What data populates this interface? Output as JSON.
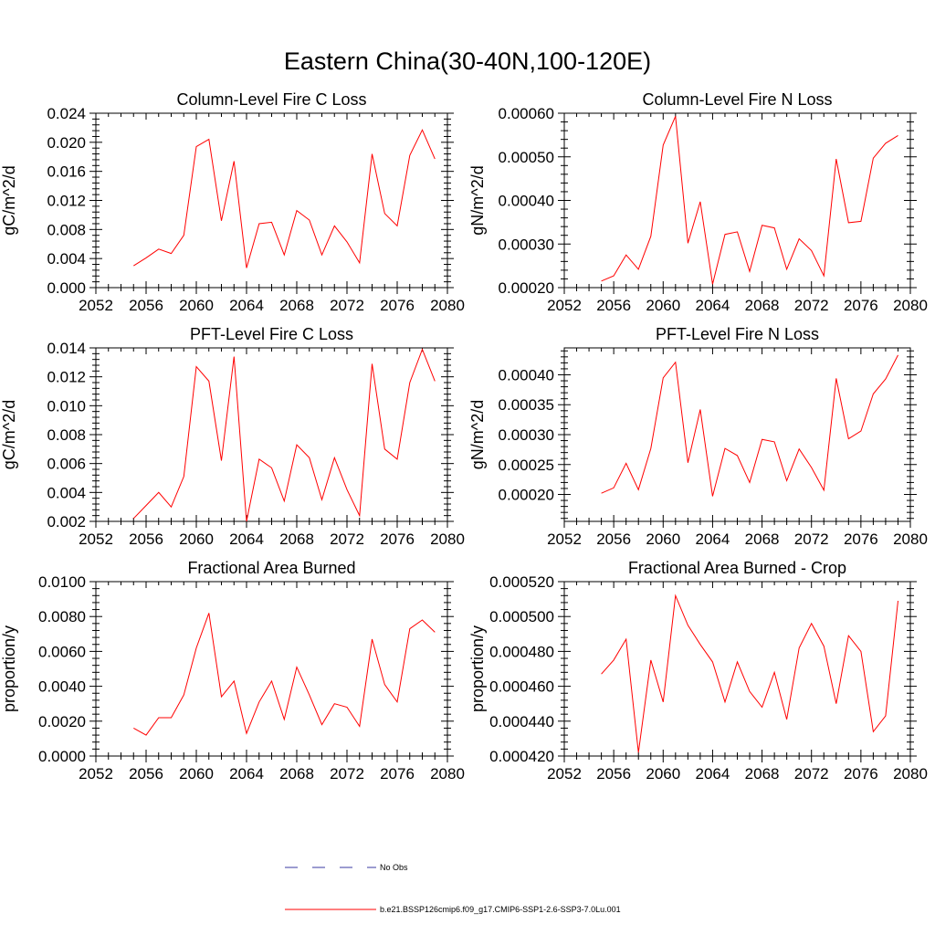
{
  "figure": {
    "title": "Eastern China(30-40N,100-120E)"
  },
  "legend": {
    "items": [
      {
        "label": "No Obs",
        "color": "#3a3aa0",
        "dash": "dashed"
      },
      {
        "label": "b.e21.BSSP126cmip6.f09_g17.CMIP6-SSP1-2.6-SSP3-7.0Lu.001",
        "color": "#ff0000",
        "dash": "solid"
      }
    ]
  },
  "chart_data": [
    {
      "type": "line",
      "title": "Column-Level Fire C Loss",
      "ylabel": "gC/m^2/d",
      "xlim": [
        2052,
        2080
      ],
      "xticks": [
        "2052",
        "2056",
        "2060",
        "2064",
        "2068",
        "2072",
        "2076",
        "2080"
      ],
      "ylim": [
        0.0,
        0.024
      ],
      "yticks": [
        "0.000",
        "0.004",
        "0.008",
        "0.012",
        "0.016",
        "0.020",
        "0.024"
      ],
      "x": [
        2055,
        2056,
        2057,
        2058,
        2059,
        2060,
        2061,
        2062,
        2063,
        2064,
        2065,
        2066,
        2067,
        2068,
        2069,
        2070,
        2071,
        2072,
        2073,
        2074,
        2075,
        2076,
        2077,
        2078,
        2079
      ],
      "series": [
        {
          "color": "#ff0000",
          "values": [
            0.003,
            0.0041,
            0.0053,
            0.0047,
            0.0072,
            0.0194,
            0.0204,
            0.0092,
            0.0174,
            0.0027,
            0.0088,
            0.009,
            0.0045,
            0.0106,
            0.0093,
            0.0045,
            0.0085,
            0.0063,
            0.0034,
            0.0184,
            0.0102,
            0.0085,
            0.0182,
            0.0217,
            0.0177
          ]
        }
      ]
    },
    {
      "type": "line",
      "title": "Column-Level Fire N Loss",
      "ylabel": "gN/m^2/d",
      "xlim": [
        2052,
        2080
      ],
      "xticks": [
        "2052",
        "2056",
        "2060",
        "2064",
        "2068",
        "2072",
        "2076",
        "2080"
      ],
      "ylim": [
        0.0002,
        0.0006
      ],
      "yticks": [
        "0.00020",
        "0.00030",
        "0.00040",
        "0.00050",
        "0.00060"
      ],
      "x": [
        2055,
        2056,
        2057,
        2058,
        2059,
        2060,
        2061,
        2062,
        2063,
        2064,
        2065,
        2066,
        2067,
        2068,
        2069,
        2070,
        2071,
        2072,
        2073,
        2074,
        2075,
        2076,
        2077,
        2078,
        2079
      ],
      "series": [
        {
          "color": "#ff0000",
          "values": [
            0.000215,
            0.000227,
            0.000275,
            0.000242,
            0.000318,
            0.000527,
            0.000593,
            0.000302,
            0.000397,
            0.000208,
            0.000322,
            0.000328,
            0.000237,
            0.000343,
            0.000337,
            0.000242,
            0.000312,
            0.000285,
            0.000227,
            0.000495,
            0.000349,
            0.000352,
            0.000497,
            0.000531,
            0.000549
          ]
        }
      ]
    },
    {
      "type": "line",
      "title": "PFT-Level Fire C Loss",
      "ylabel": "gC/m^2/d",
      "xlim": [
        2052,
        2080
      ],
      "xticks": [
        "2052",
        "2056",
        "2060",
        "2064",
        "2068",
        "2072",
        "2076",
        "2080"
      ],
      "ylim": [
        0.002,
        0.014
      ],
      "yticks": [
        "0.002",
        "0.004",
        "0.006",
        "0.008",
        "0.010",
        "0.012",
        "0.014"
      ],
      "x": [
        2055,
        2056,
        2057,
        2058,
        2059,
        2060,
        2061,
        2062,
        2063,
        2064,
        2065,
        2066,
        2067,
        2068,
        2069,
        2070,
        2071,
        2072,
        2073,
        2074,
        2075,
        2076,
        2077,
        2078,
        2079
      ],
      "series": [
        {
          "color": "#ff0000",
          "values": [
            0.0022,
            0.0031,
            0.004,
            0.003,
            0.0051,
            0.0127,
            0.0117,
            0.0062,
            0.0134,
            0.002,
            0.0063,
            0.0057,
            0.0034,
            0.0073,
            0.0064,
            0.0035,
            0.0064,
            0.0042,
            0.0024,
            0.0129,
            0.007,
            0.0063,
            0.0116,
            0.0139,
            0.0117
          ]
        }
      ]
    },
    {
      "type": "line",
      "title": "PFT-Level Fire N Loss",
      "ylabel": "gN/m^2/d",
      "xlim": [
        2052,
        2080
      ],
      "xticks": [
        "2052",
        "2056",
        "2060",
        "2064",
        "2068",
        "2072",
        "2076",
        "2080"
      ],
      "ylim": [
        0.000155,
        0.000445
      ],
      "yticks": [
        "0.00020",
        "0.00025",
        "0.00030",
        "0.00035",
        "0.00040"
      ],
      "ytick_values": [
        0.0002,
        0.00025,
        0.0003,
        0.00035,
        0.0004
      ],
      "x": [
        2055,
        2056,
        2057,
        2058,
        2059,
        2060,
        2061,
        2062,
        2063,
        2064,
        2065,
        2066,
        2067,
        2068,
        2069,
        2070,
        2071,
        2072,
        2073,
        2074,
        2075,
        2076,
        2077,
        2078,
        2079
      ],
      "series": [
        {
          "color": "#ff0000",
          "values": [
            0.000202,
            0.000211,
            0.000252,
            0.000208,
            0.000277,
            0.000395,
            0.000421,
            0.000253,
            0.000342,
            0.000197,
            0.000277,
            0.000265,
            0.00022,
            0.000292,
            0.000288,
            0.000223,
            0.000276,
            0.000245,
            0.000207,
            0.000394,
            0.000293,
            0.000306,
            0.000368,
            0.000393,
            0.000433
          ]
        }
      ]
    },
    {
      "type": "line",
      "title": "Fractional Area Burned",
      "ylabel": "proportion/y",
      "xlim": [
        2052,
        2080
      ],
      "xticks": [
        "2052",
        "2056",
        "2060",
        "2064",
        "2068",
        "2072",
        "2076",
        "2080"
      ],
      "ylim": [
        0.0,
        0.01
      ],
      "yticks": [
        "0.0000",
        "0.0020",
        "0.0040",
        "0.0060",
        "0.0080",
        "0.0100"
      ],
      "x": [
        2055,
        2056,
        2057,
        2058,
        2059,
        2060,
        2061,
        2062,
        2063,
        2064,
        2065,
        2066,
        2067,
        2068,
        2069,
        2070,
        2071,
        2072,
        2073,
        2074,
        2075,
        2076,
        2077,
        2078,
        2079
      ],
      "series": [
        {
          "color": "#ff0000",
          "values": [
            0.0016,
            0.0012,
            0.0022,
            0.0022,
            0.0035,
            0.0062,
            0.0082,
            0.0034,
            0.0043,
            0.0013,
            0.0031,
            0.0043,
            0.0021,
            0.0051,
            0.0035,
            0.0018,
            0.003,
            0.0028,
            0.0017,
            0.0067,
            0.0041,
            0.0031,
            0.0073,
            0.0078,
            0.0071
          ]
        }
      ]
    },
    {
      "type": "line",
      "title": "Fractional Area Burned - Crop",
      "ylabel": "proportion/y",
      "xlim": [
        2052,
        2080
      ],
      "xticks": [
        "2052",
        "2056",
        "2060",
        "2064",
        "2068",
        "2072",
        "2076",
        "2080"
      ],
      "ylim": [
        0.00042,
        0.00052
      ],
      "yticks": [
        "0.000420",
        "0.000440",
        "0.000460",
        "0.000480",
        "0.000500",
        "0.000520"
      ],
      "x": [
        2055,
        2056,
        2057,
        2058,
        2059,
        2060,
        2061,
        2062,
        2063,
        2064,
        2065,
        2066,
        2067,
        2068,
        2069,
        2070,
        2071,
        2072,
        2073,
        2074,
        2075,
        2076,
        2077,
        2078,
        2079
      ],
      "series": [
        {
          "color": "#ff0000",
          "values": [
            0.000467,
            0.000475,
            0.000487,
            0.000422,
            0.000475,
            0.000451,
            0.000512,
            0.000495,
            0.000484,
            0.000474,
            0.000451,
            0.000474,
            0.000457,
            0.000448,
            0.000468,
            0.000441,
            0.000482,
            0.000496,
            0.000483,
            0.00045,
            0.000489,
            0.00048,
            0.000434,
            0.000443,
            0.000509
          ]
        }
      ]
    }
  ]
}
